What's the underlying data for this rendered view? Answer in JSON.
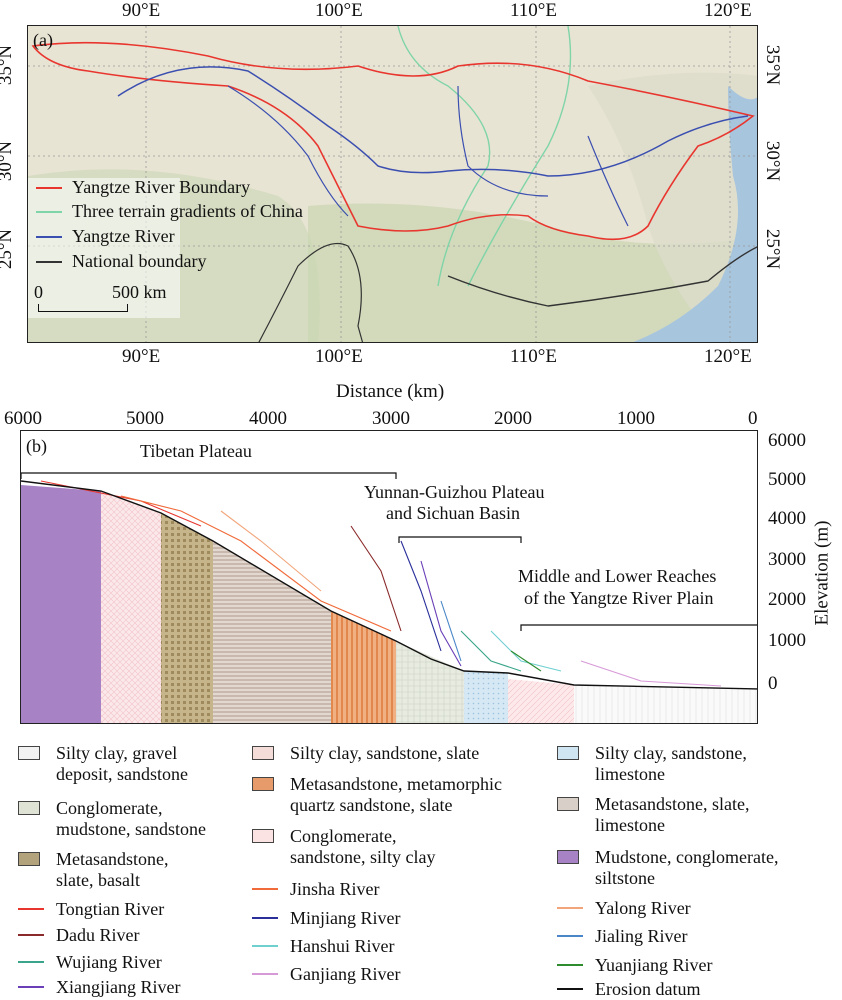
{
  "map": {
    "panel_label": "(a)",
    "top_lon_ticks": [
      "90°E",
      "100°E",
      "110°E",
      "120°E"
    ],
    "bottom_lon_ticks": [
      "90°E",
      "100°E",
      "110°E",
      "120°E"
    ],
    "lat_ticks": [
      "35°N",
      "30°N",
      "25°N"
    ],
    "legend": [
      {
        "label": "Yangtze River Boundary",
        "color": "#e8362f"
      },
      {
        "label": "Three terrain gradients of China",
        "color": "#7fd4a8"
      },
      {
        "label": "Yangtze River",
        "color": "#3b4fb0"
      },
      {
        "label": "National boundary",
        "color": "#333333"
      }
    ],
    "scale_bar": {
      "zero": "0",
      "end": "500 km"
    }
  },
  "profile": {
    "panel_label": "(b)",
    "x_title": "Distance (km)",
    "x_ticks": [
      "6000",
      "5000",
      "4000",
      "3000",
      "2000",
      "1000",
      "0"
    ],
    "y_title": "Elevation (m)",
    "y_ticks": [
      "6000",
      "5000",
      "4000",
      "3000",
      "2000",
      "1000",
      "0"
    ],
    "regions": {
      "tibet": "Tibetan Plateau",
      "yunnan_line1": "Yunnan-Guizhou Plateau",
      "yunnan_line2": "and Sichuan Basin",
      "middle_line1": "Middle and Lower Reaches",
      "middle_line2": "of the Yangtze River Plain"
    }
  },
  "legend": {
    "col1": [
      {
        "line1": "Silty clay, gravel",
        "line2": "deposit, sandstone",
        "kind": "swatch",
        "color": "#f2f2f2"
      },
      {
        "line1": "Conglomerate,",
        "line2": "mudstone, sandstone",
        "kind": "swatch",
        "color": "#dfe3d6"
      },
      {
        "line1": "Metasandstone,",
        "line2": "slate, basalt",
        "kind": "swatch",
        "color": "#b3a37c"
      },
      {
        "line1": "Tongtian River",
        "kind": "line",
        "color": "#e8362f"
      },
      {
        "line1": "Dadu River",
        "kind": "line",
        "color": "#8a2a2a"
      },
      {
        "line1": "Wujiang River",
        "kind": "line",
        "color": "#3aa58a"
      },
      {
        "line1": "Xiangjiang River",
        "kind": "line",
        "color": "#6a3fb8"
      }
    ],
    "col2": [
      {
        "line1": "Silty clay, sandstone, slate",
        "kind": "swatch",
        "color": "#f4dcd8"
      },
      {
        "line1": "Metasandstone, metamorphic",
        "line2": "quartz sandstone, slate",
        "kind": "swatch",
        "color": "#e79a6a"
      },
      {
        "line1": "Conglomerate,",
        "line2": "sandstone, silty clay",
        "kind": "swatch",
        "color": "#fbe3e3"
      },
      {
        "line1": "Jinsha River",
        "kind": "line",
        "color": "#f06a3a"
      },
      {
        "line1": "Minjiang River",
        "kind": "line",
        "color": "#2a2f9a"
      },
      {
        "line1": "Hanshui River",
        "kind": "line",
        "color": "#6fd0d0"
      },
      {
        "line1": "Ganjiang River",
        "kind": "line",
        "color": "#d79ad8"
      }
    ],
    "col3": [
      {
        "line1": "Silty clay, sandstone,",
        "line2": "limestone",
        "kind": "swatch",
        "color": "#cfe5f2"
      },
      {
        "line1": "Metasandstone, slate,",
        "line2": "limestone",
        "kind": "swatch",
        "color": "#d8cfc8"
      },
      {
        "line1": "Mudstone, conglomerate,",
        "line2": "siltstone",
        "kind": "swatch",
        "color": "#a783c6"
      },
      {
        "line1": "Yalong River",
        "kind": "line",
        "color": "#f2a57a"
      },
      {
        "line1": "Jialing River",
        "kind": "line",
        "color": "#4a86c8"
      },
      {
        "line1": "Yuanjiang River",
        "kind": "line",
        "color": "#2e8b2e"
      },
      {
        "line1": "Erosion datum",
        "kind": "line",
        "color": "#111111"
      }
    ]
  }
}
